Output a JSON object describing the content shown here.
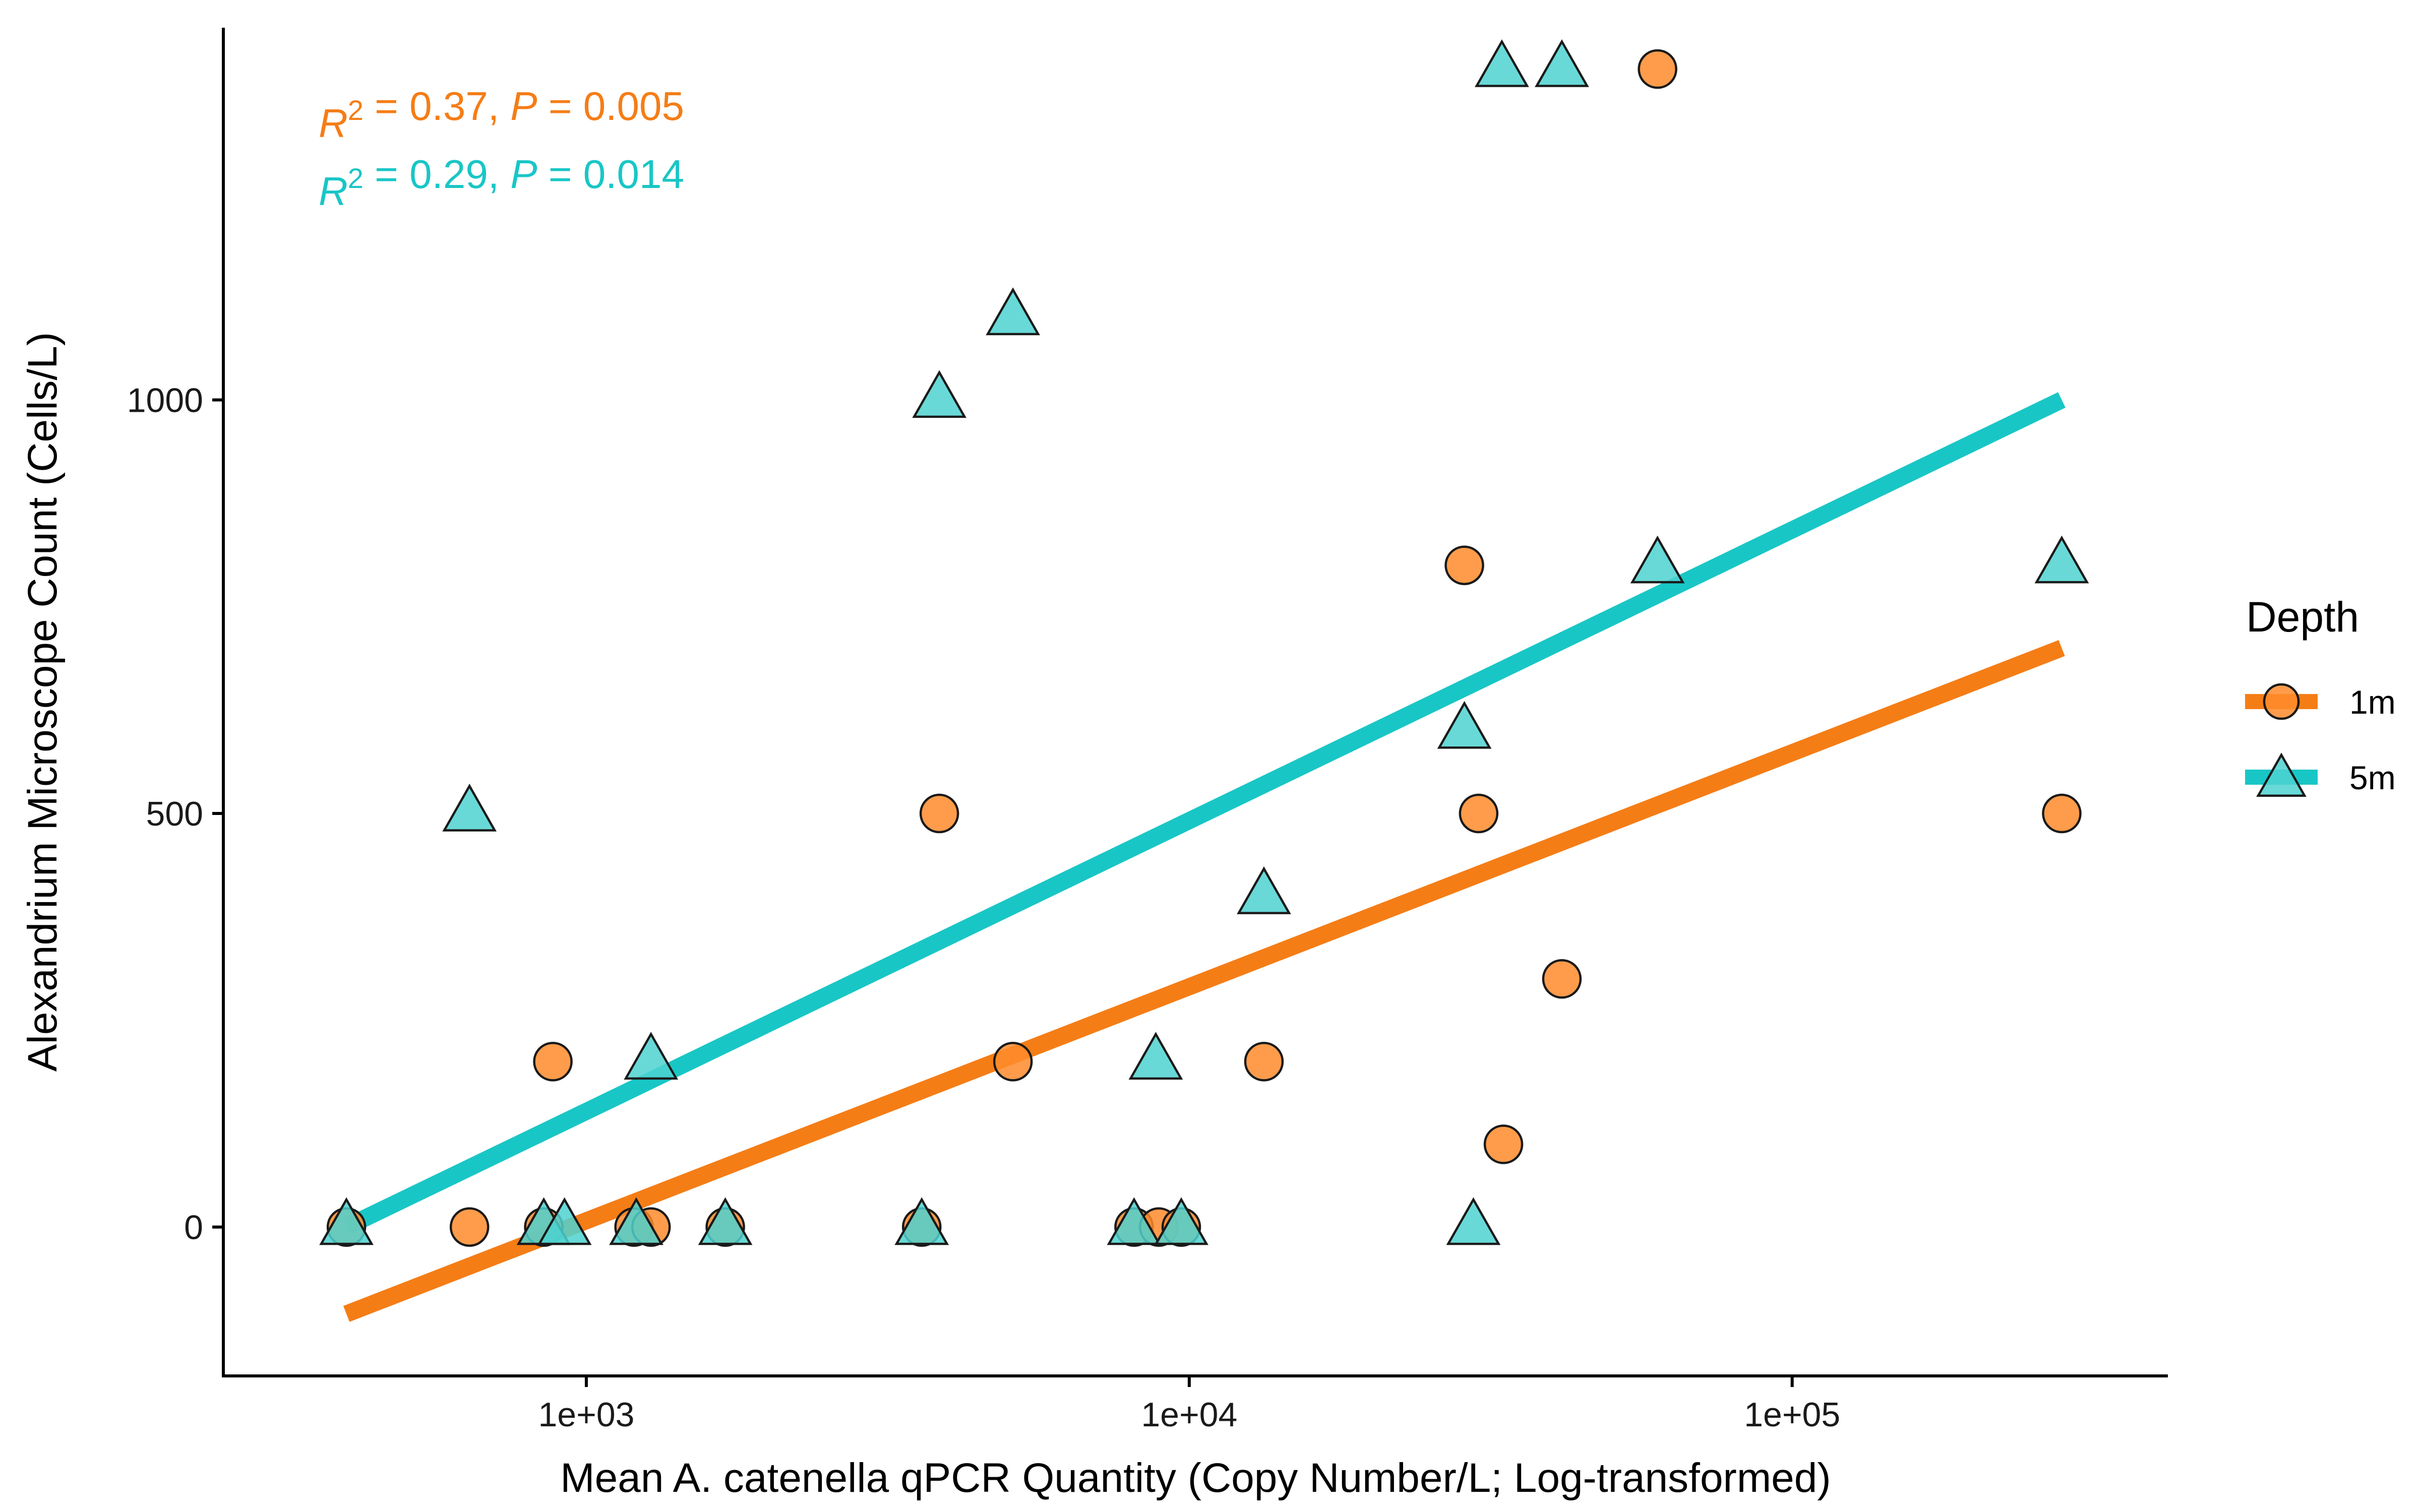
{
  "chart_data": {
    "type": "scatter",
    "xlabel": "Mean A. catenella qPCR Quantity (Copy Number/L; Log-transformed)",
    "ylabel": "Alexandrium Microscope Count (Cells/L)",
    "x_scale": "log10",
    "xlim": [
      250,
      420000
    ],
    "ylim": [
      -180,
      1450
    ],
    "x_ticks": [
      1000,
      10000,
      100000
    ],
    "x_tick_labels": [
      "1e+03",
      "1e+04",
      "1e+05"
    ],
    "y_ticks": [
      0,
      500,
      1000
    ],
    "y_tick_labels": [
      "0",
      "500",
      "1000"
    ],
    "grid": false,
    "legend": {
      "title": "Depth",
      "placement": "right"
    },
    "series": [
      {
        "name": "1m",
        "color": "#ff8b2c",
        "line_color": "#f57d16",
        "marker": "circle",
        "points": [
          {
            "x": 400,
            "y": 0
          },
          {
            "x": 640,
            "y": 0
          },
          {
            "x": 850,
            "y": 0
          },
          {
            "x": 880,
            "y": 200
          },
          {
            "x": 1200,
            "y": 0
          },
          {
            "x": 1280,
            "y": 0
          },
          {
            "x": 1700,
            "y": 0
          },
          {
            "x": 3600,
            "y": 0
          },
          {
            "x": 3850,
            "y": 500
          },
          {
            "x": 5100,
            "y": 200
          },
          {
            "x": 8100,
            "y": 0
          },
          {
            "x": 8900,
            "y": 0
          },
          {
            "x": 9700,
            "y": 0
          },
          {
            "x": 13300,
            "y": 200
          },
          {
            "x": 28600,
            "y": 800
          },
          {
            "x": 30200,
            "y": 500
          },
          {
            "x": 33200,
            "y": 100
          },
          {
            "x": 41500,
            "y": 300
          },
          {
            "x": 59800,
            "y": 1400
          },
          {
            "x": 280000,
            "y": 500
          }
        ],
        "fit": {
          "x": [
            400,
            280000
          ],
          "y": [
            -105,
            700
          ]
        },
        "annotation": {
          "r2": "0.37",
          "p": "0.005"
        }
      },
      {
        "name": "5m",
        "color": "#4dd2d0",
        "line_color": "#19c6c6",
        "marker": "triangle",
        "points": [
          {
            "x": 400,
            "y": 0
          },
          {
            "x": 640,
            "y": 500
          },
          {
            "x": 850,
            "y": 0
          },
          {
            "x": 920,
            "y": 0
          },
          {
            "x": 1210,
            "y": 0
          },
          {
            "x": 1280,
            "y": 200
          },
          {
            "x": 1700,
            "y": 0
          },
          {
            "x": 3600,
            "y": 0
          },
          {
            "x": 3850,
            "y": 1000
          },
          {
            "x": 5100,
            "y": 1100
          },
          {
            "x": 8100,
            "y": 0
          },
          {
            "x": 8800,
            "y": 200
          },
          {
            "x": 9700,
            "y": 0
          },
          {
            "x": 13300,
            "y": 400
          },
          {
            "x": 28600,
            "y": 600
          },
          {
            "x": 29600,
            "y": 0
          },
          {
            "x": 33000,
            "y": 1400
          },
          {
            "x": 41500,
            "y": 1400
          },
          {
            "x": 59800,
            "y": 800
          },
          {
            "x": 280000,
            "y": 800
          }
        ],
        "fit": {
          "x": [
            400,
            280000
          ],
          "y": [
            0,
            1000
          ]
        },
        "annotation": {
          "r2": "0.29",
          "p": "0.014"
        }
      }
    ]
  }
}
